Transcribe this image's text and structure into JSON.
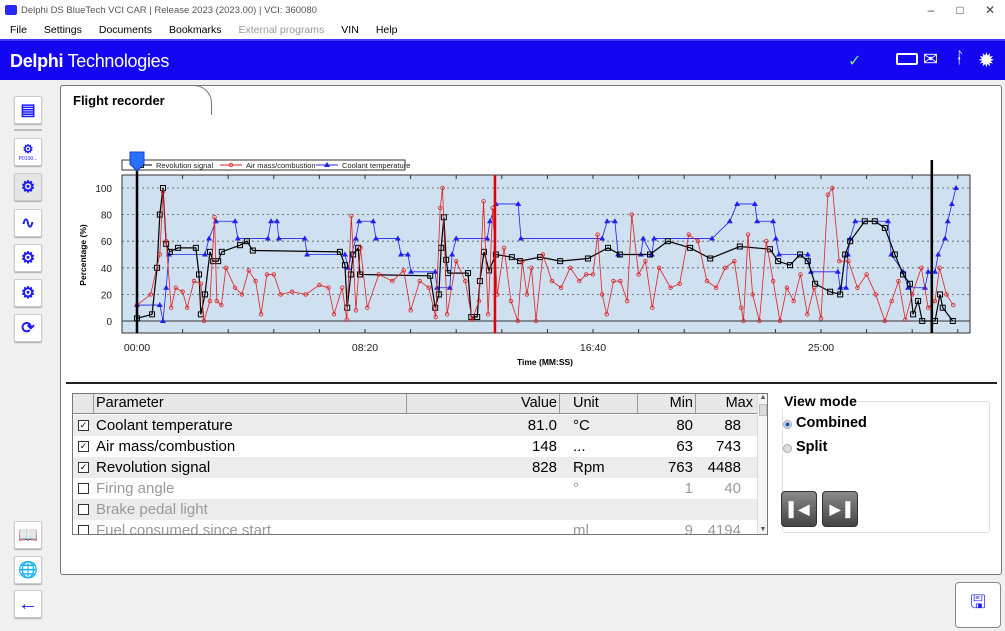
{
  "window": {
    "title": "Delphi DS BlueTech VCI CAR | Release 2023 (2023.00) | VCI: 360080"
  },
  "menu": [
    "File",
    "Settings",
    "Documents",
    "Bookmarks",
    "External programs",
    "VIN",
    "Help"
  ],
  "header": {
    "brand_bold": "Delphi",
    "brand_rest": " Technologies",
    "status_icons": [
      "check-icon",
      "vci-icon",
      "mail-icon",
      "bluetooth-icon",
      "loading-icon"
    ]
  },
  "sidebar": {
    "icons": [
      "vehicle-list-icon",
      "engine-dtc-icon",
      "engine-clear-icon",
      "graph-icon",
      "settings-chart-icon",
      "gears-icon",
      "refresh-check-icon",
      "manual-icon",
      "globe-icon",
      "back-arrow-icon"
    ],
    "dtc_caption": "P0100..."
  },
  "tab": {
    "title": "Flight recorder"
  },
  "chart_data": {
    "type": "line",
    "xlabel": "Time (MM:SS)",
    "ylabel": "Percentage (%)",
    "xticks": [
      "00:00",
      "08:20",
      "16:40",
      "25:00"
    ],
    "yticks": [
      0,
      20,
      40,
      60,
      80,
      100
    ],
    "ylim": [
      -10,
      110
    ],
    "xlim": [
      "-00:33",
      "30:27"
    ],
    "grid": "horizontal dotted",
    "background": "#cfe0f0",
    "legend_placement": "top-left",
    "cursors": [
      {
        "time": "00:00",
        "color": "#000000"
      },
      {
        "time": "13:05",
        "color": "#e00000"
      },
      {
        "time": "29:03",
        "color": "#e00000"
      },
      {
        "time": "29:03",
        "color": "#000000"
      }
    ],
    "series": [
      {
        "name": "Revolution signal",
        "color": "#000000",
        "marker": "square",
        "points": [
          [
            "00:00",
            2
          ],
          [
            "00:33",
            5
          ],
          [
            "00:44",
            40
          ],
          [
            "00:50",
            80
          ],
          [
            "00:57",
            100
          ],
          [
            "01:04",
            58
          ],
          [
            "01:12",
            52
          ],
          [
            "01:30",
            55
          ],
          [
            "02:09",
            55
          ],
          [
            "02:16",
            35
          ],
          [
            "02:20",
            5
          ],
          [
            "02:29",
            20
          ],
          [
            "02:40",
            52
          ],
          [
            "02:47",
            45
          ],
          [
            "02:58",
            45
          ],
          [
            "03:06",
            52
          ],
          [
            "03:46",
            57
          ],
          [
            "04:01",
            60
          ],
          [
            "04:14",
            53
          ],
          [
            "07:25",
            52
          ],
          [
            "07:36",
            42
          ],
          [
            "07:41",
            10
          ],
          [
            "07:49",
            35
          ],
          [
            "07:54",
            50
          ],
          [
            "08:05",
            55
          ],
          [
            "08:09",
            35
          ],
          [
            "10:43",
            34
          ],
          [
            "10:54",
            10
          ],
          [
            "11:02",
            20
          ],
          [
            "11:07",
            55
          ],
          [
            "11:13",
            78
          ],
          [
            "11:18",
            46
          ],
          [
            "11:22",
            36
          ],
          [
            "12:06",
            36
          ],
          [
            "12:13",
            3
          ],
          [
            "12:26",
            3
          ],
          [
            "12:32",
            30
          ],
          [
            "12:41",
            52
          ],
          [
            "12:52",
            38
          ],
          [
            "13:07",
            50
          ],
          [
            "13:42",
            48
          ],
          [
            "14:00",
            45
          ],
          [
            "14:44",
            48
          ],
          [
            "15:28",
            45
          ],
          [
            "16:29",
            47
          ],
          [
            "17:13",
            55
          ],
          [
            "17:39",
            50
          ],
          [
            "18:45",
            50
          ],
          [
            "19:24",
            60
          ],
          [
            "20:13",
            55
          ],
          [
            "20:57",
            47
          ],
          [
            "22:02",
            56
          ],
          [
            "23:08",
            54
          ],
          [
            "23:26",
            45
          ],
          [
            "23:52",
            42
          ],
          [
            "24:14",
            50
          ],
          [
            "24:31",
            45
          ],
          [
            "24:47",
            28
          ],
          [
            "25:20",
            22
          ],
          [
            "25:42",
            20
          ],
          [
            "25:53",
            50
          ],
          [
            "26:04",
            60
          ],
          [
            "26:36",
            75
          ],
          [
            "26:58",
            75
          ],
          [
            "27:20",
            70
          ],
          [
            "27:42",
            50
          ],
          [
            "28:00",
            35
          ],
          [
            "28:15",
            28
          ],
          [
            "28:22",
            5
          ],
          [
            "28:33",
            15
          ],
          [
            "28:42",
            0
          ],
          [
            "29:10",
            0
          ],
          [
            "29:21",
            20
          ],
          [
            "29:27",
            10
          ],
          [
            "29:49",
            0
          ]
        ]
      },
      {
        "name": "Air mass/combustion",
        "color": "#e02020",
        "marker": "diamond",
        "points": [
          [
            "00:00",
            12
          ],
          [
            "00:30",
            20
          ],
          [
            "00:50",
            50
          ],
          [
            "00:57",
            97
          ],
          [
            "01:04",
            60
          ],
          [
            "01:15",
            10
          ],
          [
            "01:25",
            25
          ],
          [
            "01:40",
            22
          ],
          [
            "01:50",
            10
          ],
          [
            "02:05",
            30
          ],
          [
            "02:20",
            28
          ],
          [
            "02:27",
            0
          ],
          [
            "02:40",
            15
          ],
          [
            "02:50",
            78
          ],
          [
            "02:55",
            15
          ],
          [
            "03:05",
            12
          ],
          [
            "03:15",
            40
          ],
          [
            "03:35",
            25
          ],
          [
            "03:50",
            20
          ],
          [
            "04:05",
            38
          ],
          [
            "04:20",
            30
          ],
          [
            "04:32",
            5
          ],
          [
            "04:45",
            35
          ],
          [
            "05:00",
            35
          ],
          [
            "05:15",
            20
          ],
          [
            "05:40",
            22
          ],
          [
            "06:10",
            20
          ],
          [
            "06:40",
            27
          ],
          [
            "07:00",
            25
          ],
          [
            "07:12",
            5
          ],
          [
            "07:30",
            25
          ],
          [
            "07:40",
            1
          ],
          [
            "07:50",
            79
          ],
          [
            "08:00",
            8
          ],
          [
            "08:10",
            55
          ],
          [
            "08:25",
            10
          ],
          [
            "08:50",
            35
          ],
          [
            "09:20",
            30
          ],
          [
            "09:45",
            38
          ],
          [
            "10:00",
            8
          ],
          [
            "10:20",
            30
          ],
          [
            "10:40",
            25
          ],
          [
            "10:55",
            3
          ],
          [
            "11:05",
            85
          ],
          [
            "11:10",
            100
          ],
          [
            "11:20",
            5
          ],
          [
            "11:40",
            45
          ],
          [
            "12:00",
            30
          ],
          [
            "12:15",
            1
          ],
          [
            "12:30",
            15
          ],
          [
            "12:40",
            90
          ],
          [
            "12:50",
            5
          ],
          [
            "13:00",
            85
          ],
          [
            "13:10",
            20
          ],
          [
            "13:25",
            55
          ],
          [
            "13:40",
            15
          ],
          [
            "13:55",
            0
          ],
          [
            "14:05",
            45
          ],
          [
            "14:15",
            20
          ],
          [
            "14:25",
            40
          ],
          [
            "14:35",
            0
          ],
          [
            "14:50",
            50
          ],
          [
            "15:10",
            30
          ],
          [
            "15:30",
            25
          ],
          [
            "15:50",
            40
          ],
          [
            "16:10",
            30
          ],
          [
            "16:25",
            35
          ],
          [
            "16:40",
            35
          ],
          [
            "16:50",
            65
          ],
          [
            "17:00",
            20
          ],
          [
            "17:10",
            5
          ],
          [
            "17:25",
            30
          ],
          [
            "17:40",
            30
          ],
          [
            "17:55",
            15
          ],
          [
            "18:05",
            80
          ],
          [
            "18:20",
            35
          ],
          [
            "18:35",
            45
          ],
          [
            "18:50",
            10
          ],
          [
            "19:05",
            40
          ],
          [
            "19:30",
            25
          ],
          [
            "19:50",
            28
          ],
          [
            "20:10",
            65
          ],
          [
            "20:30",
            60
          ],
          [
            "20:50",
            30
          ],
          [
            "21:10",
            25
          ],
          [
            "21:30",
            40
          ],
          [
            "21:50",
            45
          ],
          [
            "22:05",
            10
          ],
          [
            "22:10",
            0
          ],
          [
            "22:20",
            65
          ],
          [
            "22:30",
            20
          ],
          [
            "22:45",
            0
          ],
          [
            "23:00",
            60
          ],
          [
            "23:15",
            30
          ],
          [
            "23:30",
            0
          ],
          [
            "23:45",
            25
          ],
          [
            "24:00",
            15
          ],
          [
            "24:15",
            35
          ],
          [
            "24:30",
            5
          ],
          [
            "24:45",
            25
          ],
          [
            "25:00",
            2
          ],
          [
            "25:15",
            95
          ],
          [
            "25:25",
            100
          ],
          [
            "25:40",
            45
          ],
          [
            "26:00",
            45
          ],
          [
            "26:20",
            25
          ],
          [
            "26:40",
            35
          ],
          [
            "27:00",
            20
          ],
          [
            "27:20",
            0
          ],
          [
            "27:35",
            15
          ],
          [
            "27:50",
            30
          ],
          [
            "28:05",
            1
          ],
          [
            "28:20",
            20
          ],
          [
            "28:40",
            40
          ],
          [
            "28:55",
            10
          ],
          [
            "29:10",
            15
          ],
          [
            "29:20",
            40
          ],
          [
            "29:35",
            20
          ],
          [
            "29:50",
            12
          ]
        ]
      },
      {
        "name": "Coolant temperature",
        "color": "#2020f0",
        "marker": "triangle",
        "points": [
          [
            "00:00",
            12
          ],
          [
            "00:50",
            12
          ],
          [
            "00:57",
            0
          ],
          [
            "01:04",
            25
          ],
          [
            "01:10",
            50
          ],
          [
            "02:29",
            50
          ],
          [
            "02:38",
            62
          ],
          [
            "02:53",
            75
          ],
          [
            "03:35",
            75
          ],
          [
            "03:41",
            62
          ],
          [
            "04:47",
            62
          ],
          [
            "04:54",
            75
          ],
          [
            "05:07",
            75
          ],
          [
            "05:11",
            62
          ],
          [
            "06:08",
            62
          ],
          [
            "06:13",
            50
          ],
          [
            "07:36",
            50
          ],
          [
            "07:43",
            40
          ],
          [
            "08:00",
            62
          ],
          [
            "08:07",
            75
          ],
          [
            "08:38",
            75
          ],
          [
            "08:44",
            62
          ],
          [
            "09:32",
            62
          ],
          [
            "09:39",
            50
          ],
          [
            "09:54",
            50
          ],
          [
            "10:01",
            37
          ],
          [
            "10:54",
            37
          ],
          [
            "10:58",
            25
          ],
          [
            "11:26",
            25
          ],
          [
            "11:31",
            50
          ],
          [
            "11:40",
            62
          ],
          [
            "12:48",
            62
          ],
          [
            "12:54",
            75
          ],
          [
            "13:07",
            88
          ],
          [
            "13:56",
            88
          ],
          [
            "14:02",
            62
          ],
          [
            "17:00",
            62
          ],
          [
            "17:11",
            75
          ],
          [
            "17:28",
            75
          ],
          [
            "17:35",
            50
          ],
          [
            "18:25",
            50
          ],
          [
            "18:30",
            62
          ],
          [
            "18:49",
            50
          ],
          [
            "18:54",
            62
          ],
          [
            "21:01",
            62
          ],
          [
            "21:40",
            75
          ],
          [
            "21:56",
            88
          ],
          [
            "22:35",
            88
          ],
          [
            "22:40",
            75
          ],
          [
            "23:15",
            75
          ],
          [
            "23:21",
            62
          ],
          [
            "23:28",
            50
          ],
          [
            "24:31",
            50
          ],
          [
            "24:38",
            37
          ],
          [
            "25:37",
            37
          ],
          [
            "25:42",
            25
          ],
          [
            "25:55",
            25
          ],
          [
            "25:59",
            50
          ],
          [
            "26:04",
            62
          ],
          [
            "26:15",
            75
          ],
          [
            "27:27",
            75
          ],
          [
            "27:34",
            50
          ],
          [
            "28:00",
            37
          ],
          [
            "28:11",
            25
          ],
          [
            "28:48",
            25
          ],
          [
            "28:55",
            37
          ],
          [
            "29:10",
            37
          ],
          [
            "29:17",
            50
          ],
          [
            "29:32",
            62
          ],
          [
            "29:38",
            75
          ],
          [
            "29:47",
            88
          ],
          [
            "29:56",
            100
          ]
        ]
      }
    ]
  },
  "table": {
    "headers": {
      "parameter": "Parameter",
      "value": "Value",
      "unit": "Unit",
      "min": "Min",
      "max": "Max"
    },
    "rows": [
      {
        "checked": true,
        "parameter": "Coolant temperature",
        "value": "81.0",
        "unit": "°C",
        "min": "80",
        "max": "88"
      },
      {
        "checked": true,
        "parameter": "Air mass/combustion",
        "value": "148",
        "unit": "...",
        "min": "63",
        "max": "743"
      },
      {
        "checked": true,
        "parameter": "Revolution signal",
        "value": "828",
        "unit": "Rpm",
        "min": "763",
        "max": "4488"
      },
      {
        "checked": false,
        "parameter": "Firing angle",
        "value": "",
        "unit": "°",
        "min": "1",
        "max": "40"
      },
      {
        "checked": false,
        "parameter": "Brake pedal light",
        "value": "",
        "unit": "",
        "min": "",
        "max": ""
      },
      {
        "checked": false,
        "parameter": "Fuel consumed since start",
        "value": "",
        "unit": "ml",
        "min": "9",
        "max": "4194"
      }
    ]
  },
  "view_mode": {
    "title": "View mode",
    "options": [
      {
        "label": "Combined",
        "selected": true
      },
      {
        "label": "Split",
        "selected": false
      }
    ],
    "prev_icon": "skip-previous-icon",
    "next_icon": "skip-next-icon"
  },
  "save_button": {
    "icon": "save-screenshot-icon"
  }
}
